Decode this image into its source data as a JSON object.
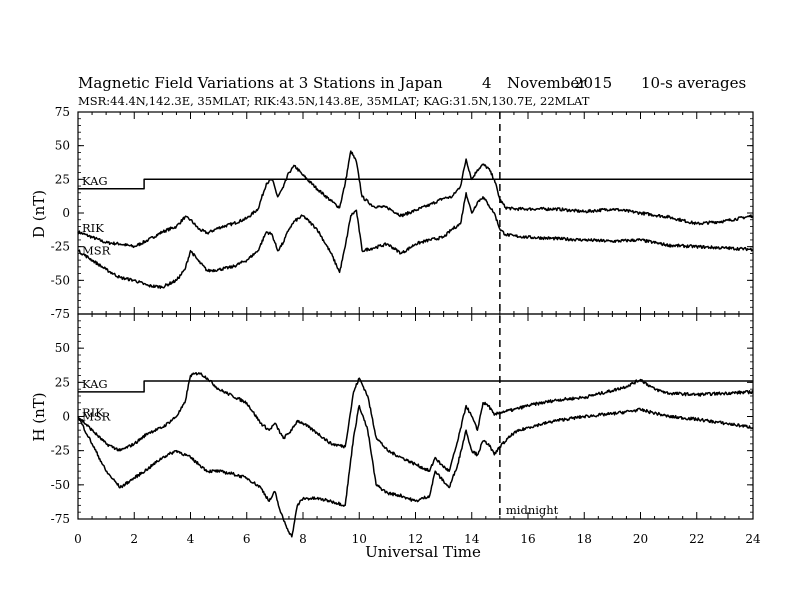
{
  "title": "Magnetic Field Variations at 3 Stations in Japan",
  "date_day": "4",
  "date_month": "November",
  "date_year": "2015",
  "averaging": "10-s averages",
  "stations_line": "MSR:44.4N,142.3E, 35MLAT;  RIK:43.5N,143.8E, 35MLAT;  KAG:31.5N,130.7E, 22MLAT",
  "midnight_label": "midnight",
  "chart_data": [
    {
      "type": "line",
      "panel": "D",
      "ylabel": "D (nT)",
      "xlabel": "Universal Time",
      "xlim": [
        0,
        24
      ],
      "ylim": [
        -75,
        75
      ],
      "xticks": [
        "0",
        "2",
        "4",
        "6",
        "8",
        "10",
        "12",
        "14",
        "16",
        "18",
        "20",
        "22",
        "24"
      ],
      "yticks": [
        "75",
        "50",
        "25",
        "0",
        "-25",
        "-50",
        "-75"
      ],
      "midnight_ut": 15,
      "series": [
        {
          "name": "KAG",
          "x": [
            0,
            2.35,
            2.35,
            24
          ],
          "y": [
            18,
            18,
            25,
            25
          ]
        },
        {
          "name": "RIK",
          "x": [
            0,
            0.5,
            1,
            1.5,
            2,
            2.5,
            3,
            3.5,
            3.8,
            4,
            4.3,
            4.6,
            5,
            5.5,
            6,
            6.4,
            6.7,
            6.9,
            7.1,
            7.3,
            7.5,
            7.7,
            8,
            8.5,
            9,
            9.3,
            9.5,
            9.7,
            9.9,
            10.1,
            10.5,
            11,
            11.5,
            12,
            12.5,
            13,
            13.3,
            13.6,
            13.8,
            14,
            14.2,
            14.4,
            14.6,
            14.8,
            15,
            15.2,
            15.5,
            16,
            17,
            18,
            19,
            20,
            21,
            22,
            23,
            24
          ],
          "y": [
            -14,
            -18,
            -22,
            -23,
            -25,
            -20,
            -14,
            -10,
            -3,
            -5,
            -12,
            -15,
            -11,
            -8,
            -4,
            3,
            22,
            25,
            12,
            19,
            30,
            35,
            28,
            18,
            9,
            4,
            22,
            46,
            38,
            12,
            5,
            4,
            -2,
            2,
            6,
            11,
            12,
            20,
            40,
            25,
            32,
            36,
            33,
            25,
            10,
            4,
            3,
            3,
            3,
            1,
            3,
            0,
            -3,
            -8,
            -6,
            -2
          ]
        },
        {
          "name": "MSR",
          "x": [
            0,
            0.5,
            1,
            1.5,
            2,
            2.5,
            3,
            3.5,
            3.8,
            4,
            4.3,
            4.6,
            5,
            5.5,
            6,
            6.4,
            6.7,
            6.9,
            7.1,
            7.3,
            7.5,
            7.7,
            8,
            8.5,
            9,
            9.3,
            9.5,
            9.7,
            9.9,
            10.1,
            10.5,
            11,
            11.5,
            12,
            12.5,
            13,
            13.3,
            13.6,
            13.8,
            14,
            14.2,
            14.4,
            14.6,
            14.8,
            15,
            15.2,
            15.5,
            16,
            17,
            18,
            19,
            20,
            21,
            22,
            23,
            24
          ],
          "y": [
            -28,
            -35,
            -42,
            -48,
            -50,
            -54,
            -55,
            -50,
            -42,
            -28,
            -36,
            -43,
            -42,
            -40,
            -35,
            -28,
            -14,
            -16,
            -28,
            -22,
            -12,
            -6,
            -2,
            -12,
            -30,
            -44,
            -25,
            -2,
            2,
            -28,
            -26,
            -23,
            -30,
            -23,
            -20,
            -18,
            -12,
            -8,
            15,
            0,
            8,
            12,
            6,
            0,
            -12,
            -16,
            -17,
            -18,
            -19,
            -20,
            -21,
            -20,
            -24,
            -25,
            -26,
            -27
          ]
        }
      ]
    },
    {
      "type": "line",
      "panel": "H",
      "ylabel": "H (nT)",
      "xlabel": "Universal Time",
      "xlim": [
        0,
        24
      ],
      "ylim": [
        -75,
        75
      ],
      "xticks": [
        "0",
        "2",
        "4",
        "6",
        "8",
        "10",
        "12",
        "14",
        "16",
        "18",
        "20",
        "22",
        "24"
      ],
      "yticks": [
        "75",
        "50",
        "25",
        "0",
        "-25",
        "-50",
        "-75"
      ],
      "midnight_ut": 15,
      "series": [
        {
          "name": "KAG",
          "x": [
            0,
            2.35,
            2.35,
            24
          ],
          "y": [
            18,
            18,
            26,
            26
          ]
        },
        {
          "name": "RIK",
          "x": [
            0,
            0.5,
            1,
            1.5,
            2,
            2.5,
            3,
            3.5,
            3.8,
            4,
            4.3,
            4.6,
            5,
            5.5,
            6,
            6.5,
            6.8,
            7,
            7.3,
            7.6,
            7.8,
            8,
            8.5,
            9,
            9.5,
            9.8,
            10,
            10.3,
            10.6,
            11,
            11.5,
            12,
            12.5,
            12.7,
            12.9,
            13.2,
            13.5,
            13.8,
            14,
            14.2,
            14.4,
            14.6,
            14.8,
            15,
            15.5,
            16,
            17,
            18,
            19,
            19.5,
            20,
            20.5,
            21,
            22,
            23,
            24
          ],
          "y": [
            0,
            -10,
            -20,
            -25,
            -20,
            -12,
            -8,
            0,
            10,
            30,
            32,
            28,
            20,
            15,
            10,
            -5,
            -10,
            -5,
            -16,
            -10,
            -3,
            -5,
            -12,
            -20,
            -22,
            18,
            28,
            15,
            -15,
            -25,
            -30,
            -35,
            -40,
            -30,
            -35,
            -40,
            -18,
            8,
            0,
            -10,
            10,
            8,
            1,
            3,
            5,
            8,
            12,
            14,
            19,
            22,
            27,
            20,
            17,
            16,
            17,
            18
          ]
        },
        {
          "name": "MSR",
          "x": [
            0,
            0.5,
            1,
            1.5,
            2,
            2.5,
            3,
            3.5,
            4,
            4.3,
            4.6,
            5,
            5.5,
            6,
            6.5,
            6.8,
            7,
            7.2,
            7.4,
            7.6,
            7.8,
            8,
            8.5,
            9,
            9.5,
            9.8,
            10,
            10.3,
            10.6,
            11,
            11.5,
            12,
            12.5,
            12.7,
            12.9,
            13.2,
            13.5,
            13.8,
            14,
            14.2,
            14.4,
            14.6,
            14.8,
            15,
            15.5,
            16,
            17,
            18,
            19,
            20,
            21,
            22,
            23,
            24
          ],
          "y": [
            0,
            -20,
            -40,
            -52,
            -45,
            -38,
            -30,
            -25,
            -30,
            -35,
            -40,
            -40,
            -42,
            -45,
            -52,
            -62,
            -55,
            -70,
            -80,
            -88,
            -65,
            -60,
            -60,
            -62,
            -65,
            -15,
            8,
            -10,
            -50,
            -56,
            -58,
            -62,
            -58,
            -40,
            -45,
            -52,
            -35,
            -10,
            -25,
            -28,
            -18,
            -20,
            -28,
            -22,
            -12,
            -8,
            -3,
            0,
            2,
            5,
            0,
            -2,
            -5,
            -8
          ]
        }
      ]
    }
  ]
}
